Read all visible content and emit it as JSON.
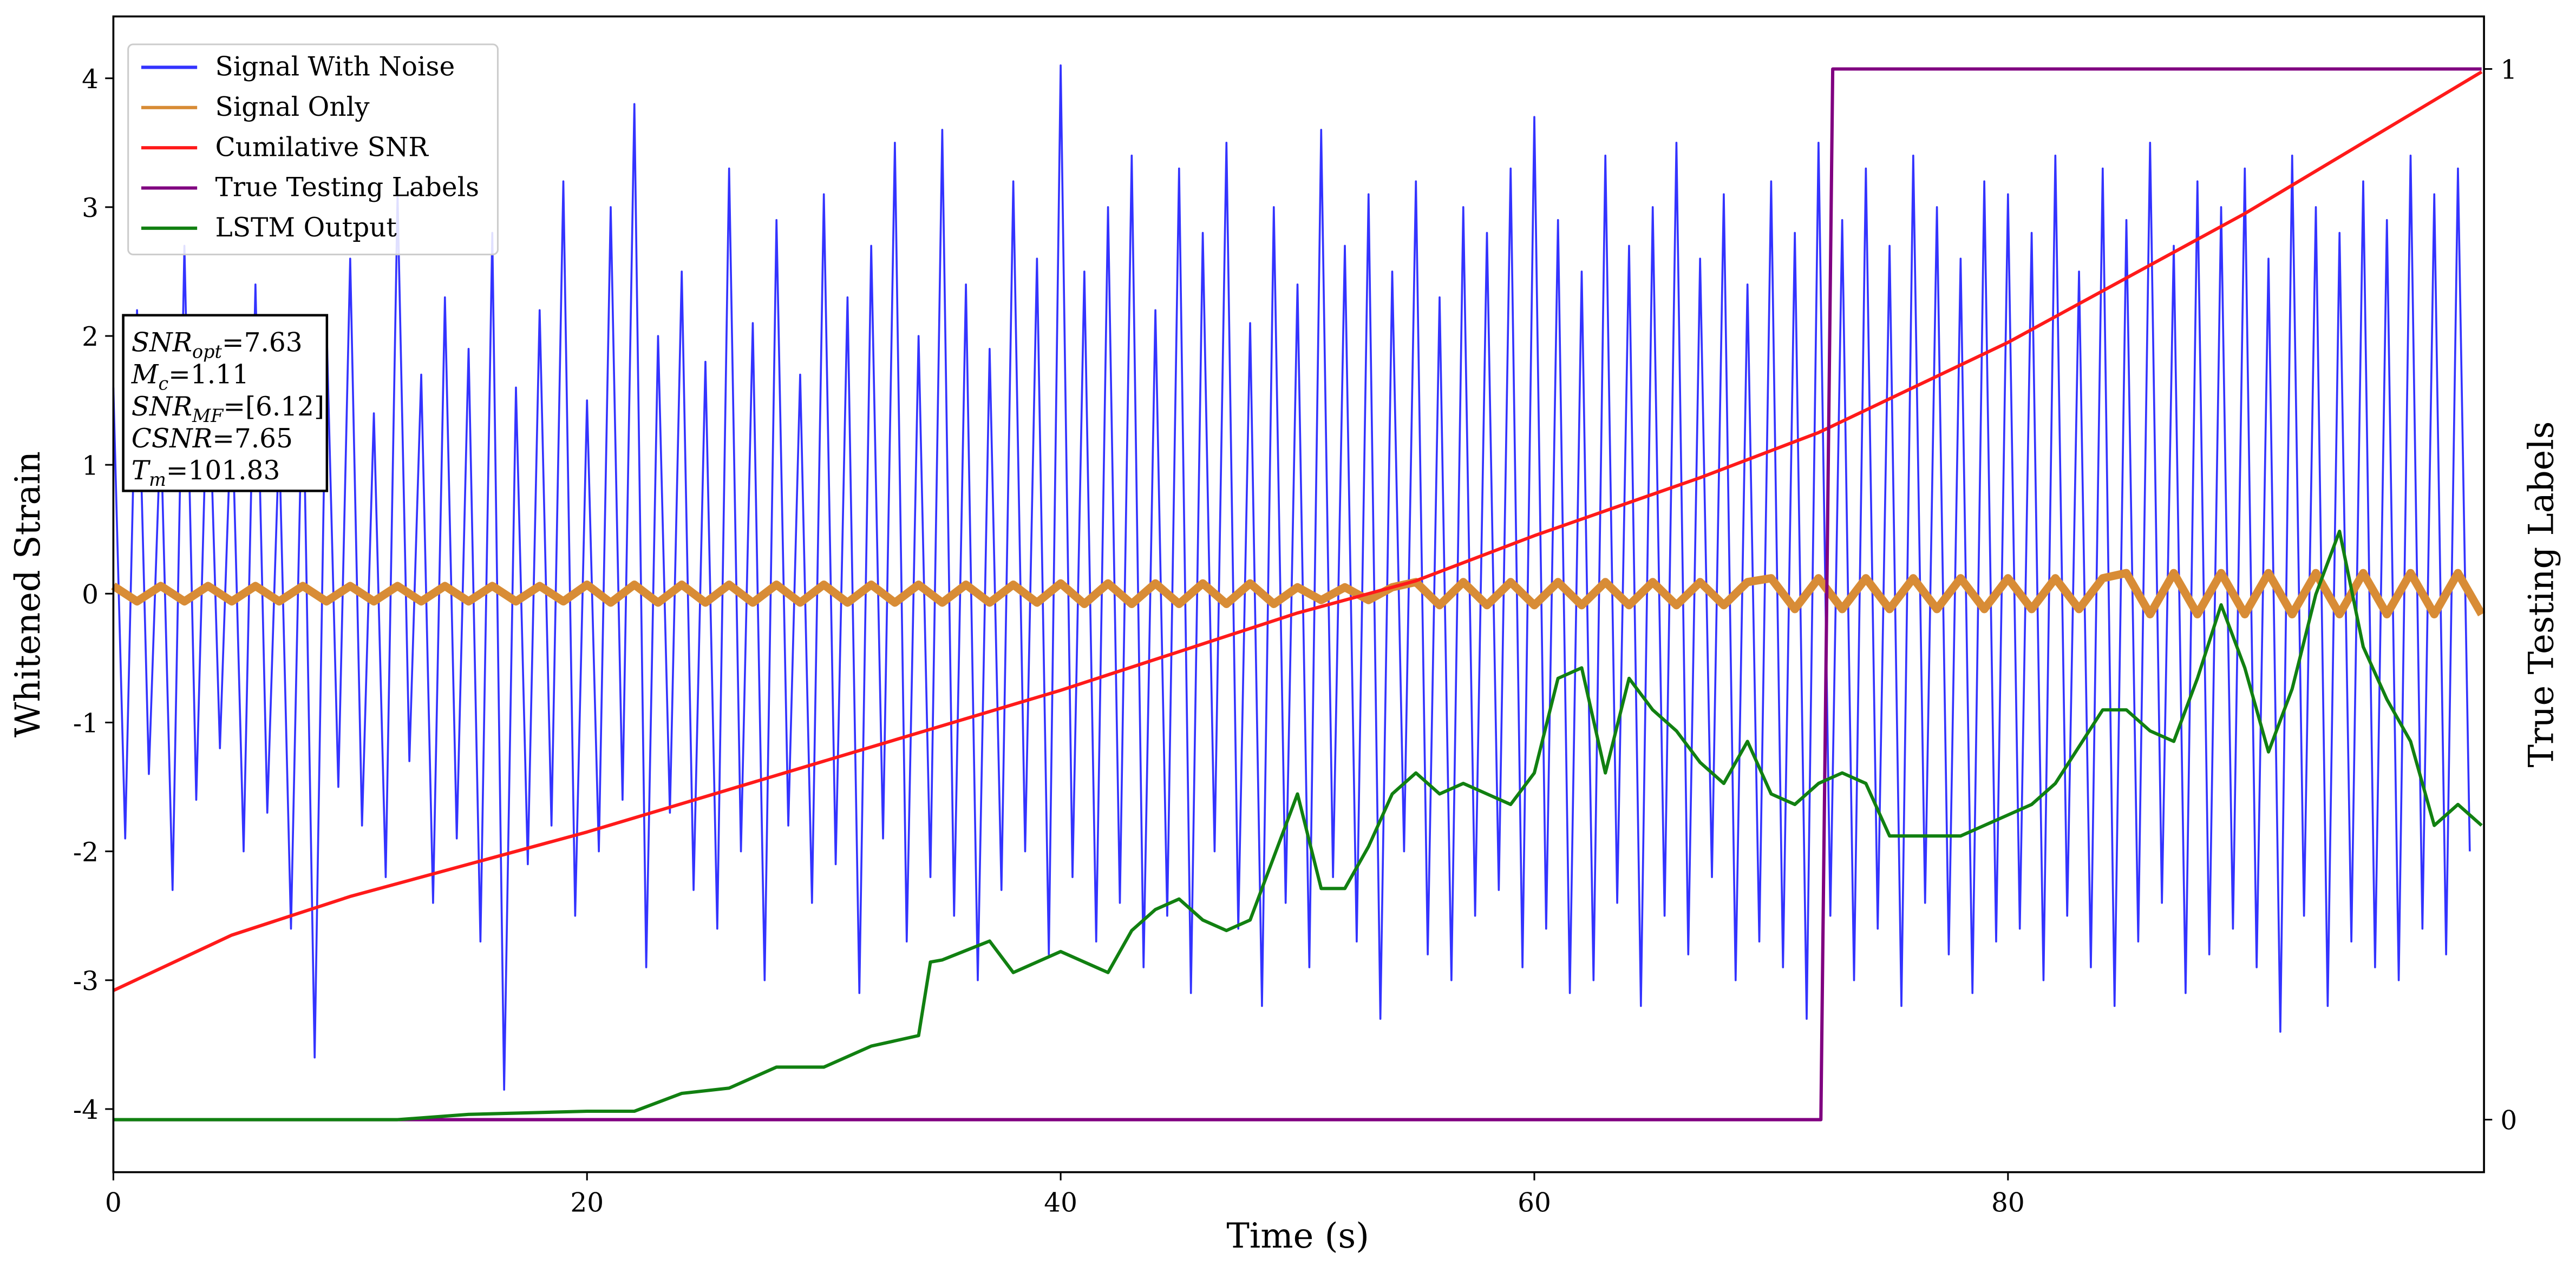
{
  "chart_data": {
    "type": "line",
    "xlabel": "Time (s)",
    "ylabel": "Whitened Strain",
    "y2label": "True Testing Labels",
    "xlim": [
      0,
      100.1
    ],
    "ylim": [
      -4.49,
      4.48
    ],
    "y2lim": [
      -0.05,
      1.05
    ],
    "xticks": [
      0,
      20,
      40,
      60,
      80
    ],
    "yticks": [
      -4,
      -3,
      -2,
      -1,
      0,
      1,
      2,
      3,
      4
    ],
    "y2ticks": [
      0,
      1
    ],
    "legend": "upper left",
    "annotations": [
      {
        "base": "SNR",
        "sub": "opt",
        "text": "=7.63"
      },
      {
        "base": "M",
        "sub": "c",
        "text": "=1.11"
      },
      {
        "base": "SNR",
        "sub": "MF",
        "text": "=[6.12]"
      },
      {
        "base": "CSNR",
        "sub": "",
        "text": "=7.65"
      },
      {
        "base": "T",
        "sub": "m",
        "text": "=101.83"
      }
    ],
    "series": [
      {
        "name": "Signal With Noise",
        "color": "#3333ff",
        "axis": "y",
        "width": 1.2,
        "x": [
          0,
          0.5,
          1,
          1.5,
          2,
          2.5,
          3,
          3.5,
          4,
          4.5,
          5,
          5.5,
          6,
          6.5,
          7,
          7.5,
          8,
          8.5,
          9,
          9.5,
          10,
          10.5,
          11,
          11.5,
          12,
          12.5,
          13,
          13.5,
          14,
          14.5,
          15,
          15.5,
          16,
          16.5,
          17,
          17.5,
          18,
          18.5,
          19,
          19.5,
          20,
          20.5,
          21,
          21.5,
          22,
          22.5,
          23,
          23.5,
          24,
          24.5,
          25,
          25.5,
          26,
          26.5,
          27,
          27.5,
          28,
          28.5,
          29,
          29.5,
          30,
          30.5,
          31,
          31.5,
          32,
          32.5,
          33,
          33.5,
          34,
          34.5,
          35,
          35.5,
          36,
          36.5,
          37,
          37.5,
          38,
          38.5,
          39,
          39.5,
          40,
          40.5,
          41,
          41.5,
          42,
          42.5,
          43,
          43.5,
          44,
          44.5,
          45,
          45.5,
          46,
          46.5,
          47,
          47.5,
          48,
          48.5,
          49,
          49.5,
          50,
          50.5,
          51,
          51.5,
          52,
          52.5,
          53,
          53.5,
          54,
          54.5,
          55,
          55.5,
          56,
          56.5,
          57,
          57.5,
          58,
          58.5,
          59,
          59.5,
          60,
          60.5,
          61,
          61.5,
          62,
          62.5,
          63,
          63.5,
          64,
          64.5,
          65,
          65.5,
          66,
          66.5,
          67,
          67.5,
          68,
          68.5,
          69,
          69.5,
          70,
          70.5,
          71,
          71.5,
          72,
          72.5,
          73,
          73.5,
          74,
          74.5,
          75,
          75.5,
          76,
          76.5,
          77,
          77.5,
          78,
          78.5,
          79,
          79.5,
          80,
          80.5,
          81,
          81.5,
          82,
          82.5,
          83,
          83.5,
          84,
          84.5,
          85,
          85.5,
          86,
          86.5,
          87,
          87.5,
          88,
          88.5,
          89,
          89.5,
          90,
          90.5,
          91,
          91.5,
          92,
          92.5,
          93,
          93.5,
          94,
          94.5,
          95,
          95.5,
          96,
          96.5,
          97,
          97.5,
          98,
          98.5,
          99,
          99.5
        ],
        "values": [
          1.6,
          -1.9,
          2.2,
          -1.4,
          1.3,
          -2.3,
          2.7,
          -1.6,
          1.9,
          -1.2,
          1.5,
          -2.0,
          2.4,
          -1.7,
          1.2,
          -2.6,
          1.8,
          -3.6,
          2.1,
          -1.5,
          2.6,
          -1.8,
          1.4,
          -2.2,
          3.1,
          -1.3,
          1.7,
          -2.4,
          2.3,
          -1.9,
          1.9,
          -2.7,
          2.8,
          -3.85,
          1.6,
          -2.1,
          2.2,
          -1.8,
          3.2,
          -2.5,
          1.5,
          -2.0,
          3.0,
          -1.6,
          3.8,
          -2.9,
          2.0,
          -1.7,
          2.5,
          -2.3,
          1.8,
          -2.6,
          3.3,
          -2.0,
          2.1,
          -3.0,
          2.9,
          -1.8,
          1.7,
          -2.4,
          3.1,
          -2.1,
          2.3,
          -3.1,
          2.7,
          -1.9,
          3.5,
          -2.7,
          2.0,
          -2.2,
          3.6,
          -2.5,
          2.4,
          -3.0,
          1.9,
          -2.3,
          3.2,
          -2.0,
          2.6,
          -2.8,
          4.1,
          -2.2,
          2.5,
          -2.7,
          3.0,
          -2.4,
          3.4,
          -2.9,
          2.2,
          -2.5,
          3.3,
          -3.1,
          2.8,
          -2.0,
          3.5,
          -2.6,
          2.1,
          -3.2,
          3.0,
          -2.4,
          2.4,
          -2.9,
          3.6,
          -2.2,
          2.7,
          -2.7,
          3.1,
          -3.3,
          2.5,
          -2.0,
          3.2,
          -2.8,
          2.3,
          -3.0,
          3.0,
          -2.5,
          2.8,
          -2.3,
          3.3,
          -2.9,
          3.7,
          -2.6,
          2.9,
          -3.1,
          2.5,
          -3.0,
          3.4,
          -2.4,
          2.7,
          -3.2,
          3.0,
          -2.5,
          3.5,
          -2.8,
          2.6,
          -2.2,
          3.1,
          -3.0,
          2.4,
          -2.7,
          3.2,
          -2.9,
          2.8,
          -3.3,
          3.5,
          -2.5,
          2.9,
          -3.0,
          3.3,
          -2.6,
          2.7,
          -3.2,
          3.4,
          -2.4,
          3.0,
          -2.8,
          2.6,
          -3.1,
          3.2,
          -2.7,
          3.1,
          -2.6,
          2.8,
          -3.0,
          3.4,
          -2.5,
          2.5,
          -2.9,
          3.3,
          -3.2,
          2.9,
          -2.7,
          3.5,
          -2.4,
          2.7,
          -3.1,
          3.2,
          -2.8,
          3.0,
          -2.6,
          3.3,
          -2.9,
          2.6,
          -3.4,
          3.4,
          -2.5,
          3.0,
          -3.2,
          2.8,
          -2.7,
          3.2,
          -2.9,
          2.9,
          -3.0,
          3.4,
          -2.6,
          3.1,
          -2.8,
          3.3,
          -2.0
        ]
      },
      {
        "name": "Signal Only",
        "color": "#d88c36",
        "axis": "y",
        "width": 5,
        "x": [
          0,
          1,
          2,
          3,
          4,
          5,
          6,
          7,
          8,
          9,
          10,
          11,
          12,
          13,
          14,
          15,
          16,
          17,
          18,
          19,
          20,
          21,
          22,
          23,
          24,
          25,
          26,
          27,
          28,
          29,
          30,
          31,
          32,
          33,
          34,
          35,
          36,
          37,
          38,
          39,
          40,
          41,
          42,
          43,
          44,
          45,
          46,
          47,
          48,
          49,
          50,
          51,
          52,
          53,
          54,
          55,
          56,
          57,
          58,
          59,
          60,
          61,
          62,
          63,
          64,
          65,
          66,
          67,
          68,
          69,
          70,
          71,
          72,
          73,
          74,
          75,
          76,
          77,
          78,
          79,
          80,
          81,
          82,
          83,
          84,
          85,
          86,
          87,
          88,
          89,
          90,
          91,
          92,
          93,
          94,
          95,
          96,
          97,
          98,
          99,
          100
        ],
        "values": [
          0.06,
          -0.06,
          0.06,
          -0.06,
          0.06,
          -0.06,
          0.06,
          -0.06,
          0.06,
          -0.06,
          0.06,
          -0.06,
          0.06,
          -0.06,
          0.06,
          -0.06,
          0.06,
          -0.06,
          0.06,
          -0.06,
          0.07,
          -0.07,
          0.07,
          -0.07,
          0.07,
          -0.07,
          0.07,
          -0.07,
          0.07,
          -0.07,
          0.07,
          -0.07,
          0.07,
          -0.07,
          0.07,
          -0.07,
          0.07,
          -0.07,
          0.07,
          -0.07,
          0.08,
          -0.08,
          0.08,
          -0.08,
          0.08,
          -0.08,
          0.08,
          -0.08,
          0.08,
          -0.08,
          0.05,
          -0.05,
          0.05,
          -0.05,
          0.05,
          0.09,
          -0.09,
          0.09,
          -0.09,
          0.09,
          -0.09,
          0.09,
          -0.09,
          0.09,
          -0.09,
          0.09,
          -0.09,
          0.09,
          -0.09,
          0.09,
          0.12,
          -0.12,
          0.12,
          -0.12,
          0.12,
          -0.12,
          0.12,
          -0.12,
          0.12,
          -0.12,
          0.12,
          -0.12,
          0.12,
          -0.12,
          0.12,
          0.16,
          -0.16,
          0.16,
          -0.16,
          0.16,
          -0.16,
          0.16,
          -0.16,
          0.16,
          -0.16,
          0.16,
          -0.16,
          0.16,
          -0.16,
          0.16,
          -0.16
        ]
      },
      {
        "name": "Cumilative SNR",
        "color": "#ff1a1a",
        "axis": "y",
        "width": 2,
        "x": [
          0,
          5,
          10,
          20,
          30,
          40,
          50,
          55,
          60,
          67,
          72,
          80,
          90,
          95,
          100
        ],
        "values": [
          -3.08,
          -2.65,
          -2.35,
          -1.85,
          -1.3,
          -0.75,
          -0.15,
          0.1,
          0.45,
          0.9,
          1.25,
          1.95,
          2.95,
          3.5,
          4.05
        ]
      },
      {
        "name": "True Testing Labels",
        "color": "#800080",
        "axis": "y2",
        "width": 2,
        "x": [
          0,
          72.1,
          72.6,
          100
        ],
        "values": [
          0,
          0,
          1,
          1
        ]
      },
      {
        "name": "LSTM Output",
        "color": "#118011",
        "axis": "y2",
        "width": 2,
        "x": [
          0,
          12,
          15,
          20,
          22,
          24,
          26,
          28,
          30,
          32,
          34,
          34.5,
          35,
          37,
          38,
          40,
          42,
          43,
          44,
          45,
          46,
          47,
          48,
          49,
          50,
          51,
          52,
          53,
          54,
          55,
          56,
          57,
          58,
          59,
          60,
          61,
          62,
          63,
          64,
          65,
          66,
          67,
          68,
          69,
          70,
          71,
          72,
          73,
          74,
          75,
          77,
          78,
          79,
          80,
          81,
          82,
          84,
          85,
          86,
          87,
          88,
          89,
          90,
          91,
          92,
          93,
          94,
          95,
          96,
          97,
          98,
          99,
          100
        ],
        "values": [
          0,
          0,
          0.005,
          0.008,
          0.008,
          0.025,
          0.03,
          0.05,
          0.05,
          0.07,
          0.08,
          0.15,
          0.152,
          0.17,
          0.14,
          0.16,
          0.14,
          0.18,
          0.2,
          0.21,
          0.19,
          0.18,
          0.19,
          0.25,
          0.31,
          0.22,
          0.22,
          0.26,
          0.31,
          0.33,
          0.31,
          0.32,
          0.31,
          0.3,
          0.33,
          0.42,
          0.43,
          0.33,
          0.42,
          0.39,
          0.37,
          0.34,
          0.32,
          0.36,
          0.31,
          0.3,
          0.32,
          0.33,
          0.32,
          0.27,
          0.27,
          0.27,
          0.28,
          0.29,
          0.3,
          0.32,
          0.39,
          0.39,
          0.37,
          0.36,
          0.42,
          0.49,
          0.43,
          0.35,
          0.41,
          0.5,
          0.56,
          0.45,
          0.4,
          0.36,
          0.28,
          0.3,
          0.28
        ]
      }
    ]
  }
}
